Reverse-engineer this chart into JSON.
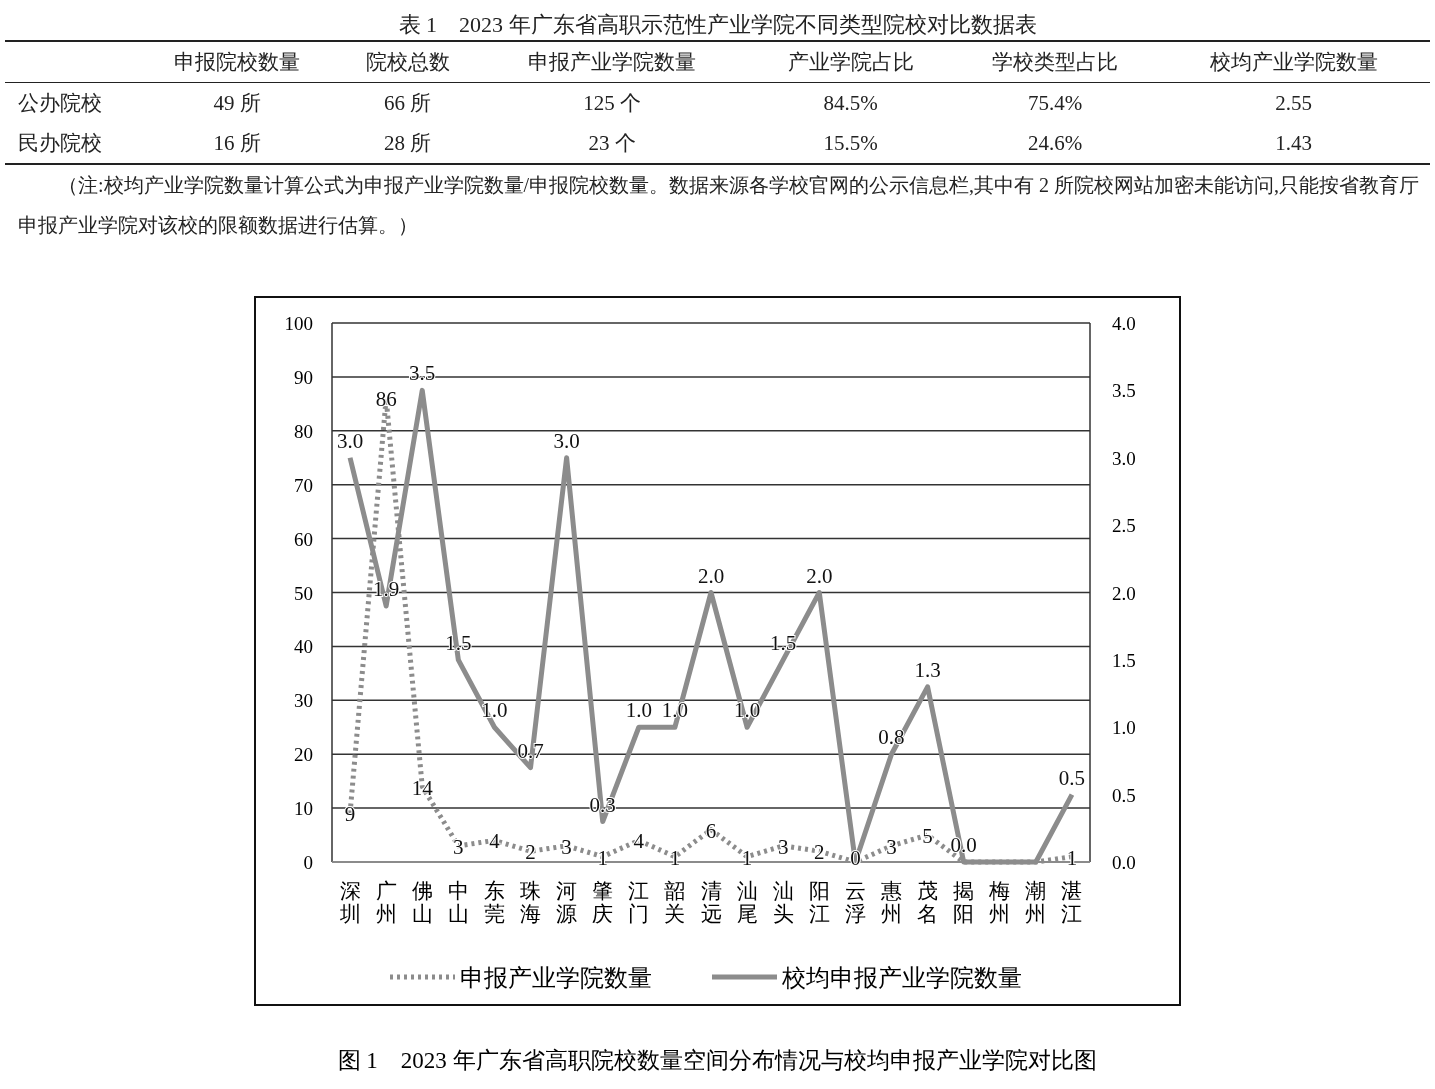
{
  "chart_data": [
    {
      "type": "other",
      "title": "表 1　2023 年广东省高职示范性产业学院不同类型院校对比数据表",
      "categories": [
        "申报院校数量",
        "院校总数",
        "申报产业学院数量",
        "产业学院占比",
        "学校类型占比",
        "校均产业学院数量"
      ],
      "y_categories": [
        "公办院校",
        "民办院校"
      ],
      "cell_labels": [
        [
          "49 所",
          "66 所",
          "125 个",
          "84.5%",
          "75.4%",
          "2.55"
        ],
        [
          "16 所",
          "28 所",
          "23 个",
          "15.5%",
          "24.6%",
          "1.43"
        ]
      ],
      "annotations": [
        "（注:校均产业学院数量计算公式为申报产业学院数量/申报院校数量。数据来源各学校官网的公示信息栏,其中有 2 所院校网站加密未能访问,只能按省教育厅申报产业学院对该校的限额数据进行估算。）"
      ]
    },
    {
      "type": "line",
      "categories": [
        "深圳",
        "广州",
        "佛山",
        "中山",
        "东莞",
        "珠海",
        "河源",
        "肇庆",
        "江门",
        "韶关",
        "清远",
        "汕尾",
        "汕头",
        "阳江",
        "云浮",
        "惠州",
        "茂名",
        "揭阳",
        "梅州",
        "潮州",
        "湛江"
      ],
      "series": [
        {
          "name": "申报产业学院数量",
          "type": "line",
          "color": "#8c8c8c",
          "line_style": "dotted",
          "values": [
            9,
            86,
            14,
            3,
            4,
            2,
            3,
            1,
            4,
            1,
            6,
            1,
            3,
            2,
            0,
            3,
            5,
            0,
            0,
            0,
            1
          ],
          "value_labels": [
            "9",
            "86",
            "14",
            "3",
            "4",
            "2",
            "3",
            "1",
            "4",
            "1",
            "6",
            "1",
            "3",
            "2",
            "0",
            "3",
            "5",
            null,
            null,
            null,
            "1"
          ]
        },
        {
          "name": "校均申报产业学院数量",
          "type": "line",
          "axis": "y2",
          "color": "#8c8c8c",
          "line_style": "solid",
          "values": [
            3.0,
            1.9,
            3.5,
            1.5,
            1.0,
            0.7,
            3.0,
            0.3,
            1.0,
            1.0,
            2.0,
            1.0,
            1.5,
            2.0,
            0.0,
            0.8,
            1.3,
            0.0,
            0.0,
            0.0,
            0.5
          ],
          "value_labels": [
            "3.0",
            "1.9",
            "3.5",
            "1.5",
            "1.0",
            "0.7",
            "3.0",
            "0.3",
            "1.0",
            "1.0",
            "2.0",
            "1.0",
            "1.5",
            "2.0",
            null,
            "0.8",
            "1.3",
            "0.0",
            null,
            null,
            "0.5"
          ]
        }
      ],
      "ylim": [
        0,
        100
      ],
      "yticks": [
        0,
        10,
        20,
        30,
        40,
        50,
        60,
        70,
        80,
        90,
        100
      ],
      "y2lim": [
        0,
        4
      ],
      "y2ticks": [
        {
          "value": 0,
          "label": "0.0"
        },
        {
          "value": 0.5,
          "label": "0.5"
        },
        {
          "value": 1,
          "label": "1.0"
        },
        {
          "value": 1.5,
          "label": "1.5"
        },
        {
          "value": 2,
          "label": "2.0"
        },
        {
          "value": 2.5,
          "label": "2.5"
        },
        {
          "value": 3,
          "label": "3.0"
        },
        {
          "value": 3.5,
          "label": "3.5"
        },
        {
          "value": 4,
          "label": "4.0"
        }
      ],
      "grid": "y",
      "legend": "bottom",
      "annotations": [
        "图 1　2023 年广东省高职院校数量空间分布情况与校均申报产业学院对比图"
      ]
    }
  ]
}
